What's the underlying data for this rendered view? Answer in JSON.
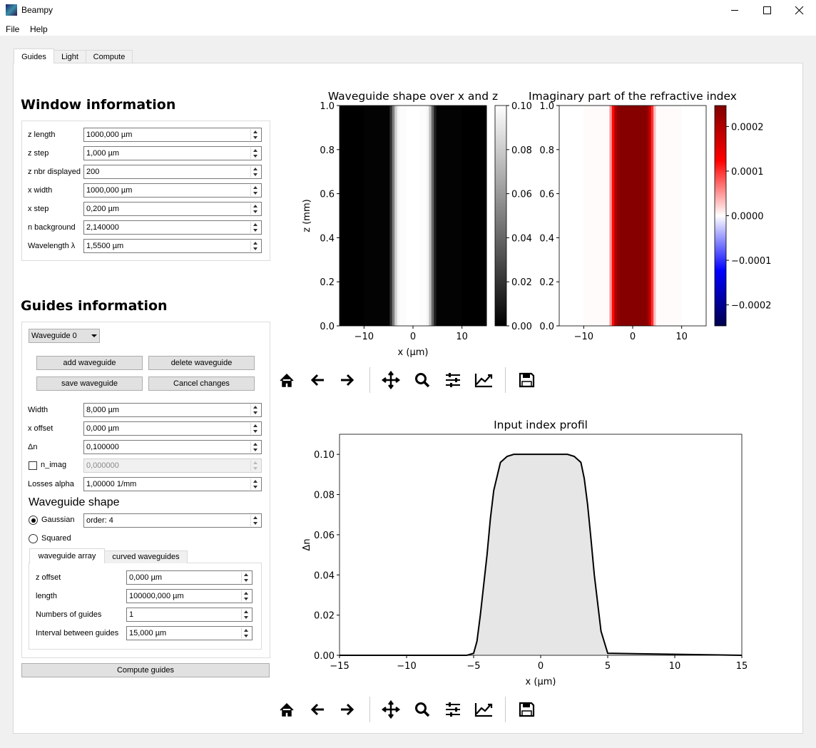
{
  "window": {
    "title": "Beampy",
    "menu": [
      "File",
      "Help"
    ]
  },
  "tabs": [
    "Guides",
    "Light",
    "Compute"
  ],
  "window_information": {
    "heading": "Window information",
    "fields": [
      {
        "label": "z length",
        "value": "1000,000 µm"
      },
      {
        "label": "z step",
        "value": "1,000 µm"
      },
      {
        "label": "z nbr displayed",
        "value": "200"
      },
      {
        "label": "x width",
        "value": "1000,000 µm"
      },
      {
        "label": "x step",
        "value": "0,200 µm"
      },
      {
        "label": "n background",
        "value": "2,140000"
      },
      {
        "label": "Wavelength λ",
        "value": "1,5500 µm"
      }
    ]
  },
  "guides_information": {
    "heading": "Guides information",
    "waveguide_select": "Waveguide 0",
    "buttons": [
      "add waveguide",
      "delete waveguide",
      "save waveguide",
      "Cancel changes"
    ],
    "fields": [
      {
        "label": "Width",
        "value": "8,000 µm"
      },
      {
        "label": "x offset",
        "value": "0,000 µm"
      },
      {
        "label": "Δn",
        "value": "0,100000"
      },
      {
        "label": "n_imag",
        "value": "0,000000",
        "checkbox": true,
        "enabled": false
      },
      {
        "label": "Losses alpha",
        "value": "1,00000 1/mm"
      }
    ],
    "shape_heading": "Waveguide shape",
    "shapes": [
      {
        "label": "Gaussian",
        "value": "order: 4",
        "selected": true
      },
      {
        "label": "Squared",
        "selected": false
      }
    ],
    "subtabs": [
      "waveguide array",
      "curved waveguides"
    ],
    "array_fields": [
      {
        "label": "z offset",
        "value": "0,000 µm"
      },
      {
        "label": "length",
        "value": "100000,000 µm"
      },
      {
        "label": "Numbers of guides",
        "value": "1"
      },
      {
        "label": "Interval between guides",
        "value": "15,000 µm"
      }
    ],
    "compute_button": "Compute guides"
  },
  "chart_data": [
    {
      "type": "heatmap",
      "title": "Waveguide shape over x and z",
      "xlabel": "x (μm)",
      "ylabel": "z (mm)",
      "colormap": "gray",
      "x": [
        -15,
        -5,
        -4.5,
        -4,
        -3.5,
        -3,
        -2.5,
        0,
        2.5,
        3,
        3.5,
        4,
        4.5,
        5,
        15
      ],
      "values": [
        0,
        0.001,
        0.02,
        0.05,
        0.082,
        0.096,
        0.099,
        0.1,
        0.099,
        0.096,
        0.075,
        0.04,
        0.012,
        0.001,
        0
      ],
      "xlim": [
        -15,
        15
      ],
      "ylim": [
        0,
        1
      ],
      "clim": [
        0,
        0.1
      ],
      "xticks": [
        {
          "value": -10,
          "label": "−10"
        },
        0,
        10
      ],
      "yticks": [
        {
          "value": 0,
          "label": "0.0"
        },
        0.2,
        0.4,
        0.6,
        0.8,
        {
          "value": 1,
          "label": "1.0"
        }
      ],
      "cticks": [
        {
          "value": 0,
          "label": "0.00"
        },
        0.02,
        0.04,
        0.06,
        0.08,
        {
          "value": 0.1,
          "label": "0.10"
        }
      ]
    },
    {
      "type": "heatmap",
      "title": "Imaginary part of the refractive index",
      "colormap": "seismic",
      "x": [
        -15,
        -5,
        -4.5,
        -4,
        -3.5,
        -3,
        -2.5,
        0,
        2.5,
        3,
        3.5,
        4,
        4.5,
        5,
        15
      ],
      "values": [
        0,
        2e-06,
        5e-05,
        0.00012,
        0.0002,
        0.00023,
        0.00024,
        0.00024,
        0.00024,
        0.00023,
        0.00018,
        0.0001,
        3e-05,
        2e-06,
        0
      ],
      "xlim": [
        -15,
        15
      ],
      "ylim": [
        0,
        1
      ],
      "clim": [
        -0.000247,
        0.000247
      ],
      "xticks": [
        {
          "value": -10,
          "label": "−10"
        },
        0,
        10
      ],
      "yticks": [
        {
          "value": 0,
          "label": "0.0"
        },
        0.2,
        0.4,
        0.6,
        0.8,
        {
          "value": 1,
          "label": "1.0"
        }
      ],
      "cticks": [
        {
          "value": -0.0002,
          "label": "−0.0002"
        },
        {
          "value": -0.0001,
          "label": "−0.0001"
        },
        {
          "value": 0,
          "label": "0.0000"
        },
        0.0001,
        0.0002
      ]
    },
    {
      "type": "area",
      "title": "Input index profil",
      "xlabel": "x (μm)",
      "ylabel": "Δn",
      "color": "#000000",
      "fill_color": "#e6e6e6",
      "x": [
        -15,
        -5.5,
        -5,
        -4.75,
        -4.5,
        -4.25,
        -4,
        -3.75,
        -3.5,
        -3,
        -2.5,
        -2,
        2,
        2.5,
        3,
        3.25,
        3.5,
        3.75,
        4,
        4.5,
        5,
        15
      ],
      "values": [
        0,
        0,
        0.001,
        0.007,
        0.02,
        0.035,
        0.05,
        0.068,
        0.082,
        0.096,
        0.099,
        0.1,
        0.1,
        0.099,
        0.096,
        0.088,
        0.075,
        0.058,
        0.04,
        0.012,
        0.001,
        0
      ],
      "xlim": [
        -15,
        15
      ],
      "ylim": [
        0,
        0.11
      ],
      "xticks": [
        {
          "value": -15,
          "label": "−15"
        },
        {
          "value": -10,
          "label": "−10"
        },
        {
          "value": -5,
          "label": "−5"
        },
        0,
        5,
        10,
        15
      ],
      "yticks": [
        {
          "value": 0,
          "label": "0.00"
        },
        0.02,
        0.04,
        0.06,
        0.08,
        {
          "value": 0.1,
          "label": "0.10"
        }
      ]
    }
  ]
}
